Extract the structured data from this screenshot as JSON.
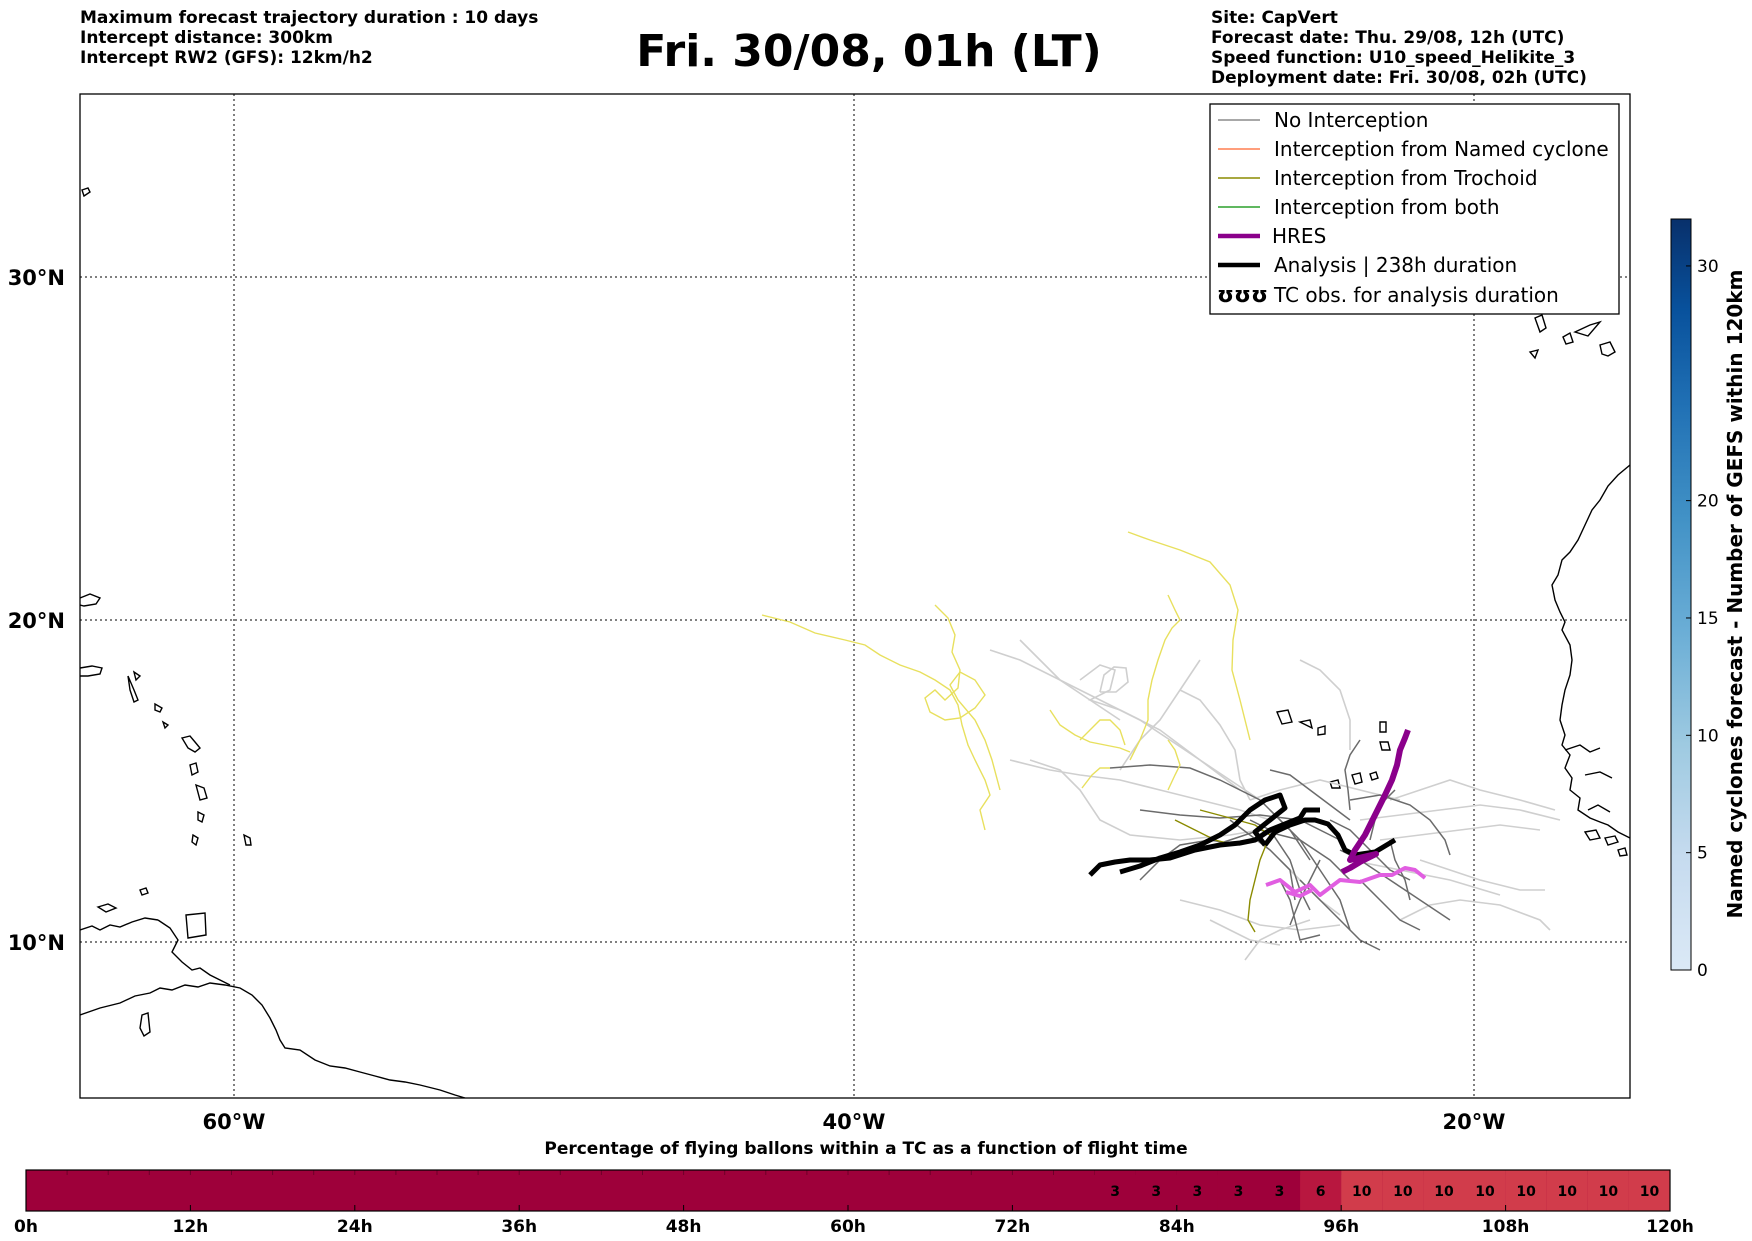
{
  "header": {
    "left": [
      "Maximum forecast trajectory duration : 10 days",
      "Intercept distance: 300km",
      "Intercept RW2 (GFS):  12km/h2"
    ],
    "title": "Fri. 30/08, 01h (LT)",
    "right": [
      "Site: CapVert",
      "Forecast date: Thu. 29/08, 12h (UTC)",
      "Speed function: U10_speed_Helikite_3",
      "Deployment date: Fri. 30/08, 02h (UTC)"
    ]
  },
  "map": {
    "lat_labels": [
      "30°N",
      "20°N",
      "10°N"
    ],
    "lon_labels": [
      "60°W",
      "40°W",
      "20°W"
    ],
    "lat_range": [
      5.5,
      34.5
    ],
    "lon_range": [
      -65,
      -15
    ],
    "grid": true
  },
  "legend": {
    "items": [
      {
        "label": "No Interception",
        "color": "#8c8c8c",
        "style": "thin"
      },
      {
        "label": "Interception from Named cyclone",
        "color": "#ff7f50",
        "style": "thin"
      },
      {
        "label": "Interception from Trochoid",
        "color": "#8b8b00",
        "style": "thin"
      },
      {
        "label": "Interception from both",
        "color": "#2ca02c",
        "style": "thin"
      },
      {
        "label": "HRES",
        "color": "#8b008b",
        "style": "thick"
      },
      {
        "label": "Analysis | 238h duration",
        "color": "#000000",
        "style": "thick"
      },
      {
        "label": "TC obs. for analysis duration",
        "color": "#000000",
        "style": "symbol",
        "symbol": "ʊʊʊ"
      }
    ]
  },
  "colorbar": {
    "title": "Named cyclones forecast - Number of GEFS within 120km",
    "ticks": [
      "0",
      "5",
      "10",
      "15",
      "20",
      "30"
    ],
    "tick_values": [
      0,
      5,
      10,
      15,
      20,
      30
    ],
    "range": [
      0,
      32
    ],
    "colors": [
      "#dbe9f6",
      "#c6dbef",
      "#9ecae1",
      "#6baed6",
      "#4292c6",
      "#2171b5",
      "#08519c",
      "#08306b"
    ]
  },
  "timeline": {
    "title": "Percentage of flying ballons within a TC as a function of flight time",
    "tick_labels": [
      "0h",
      "12h",
      "24h",
      "36h",
      "48h",
      "60h",
      "72h",
      "84h",
      "96h",
      "108h",
      "120h"
    ],
    "hours": [
      0,
      120
    ],
    "low_color": "#9e003a",
    "mid_color": "#b8173f",
    "high_color": "#d13c4b",
    "cells": [
      {
        "start_h": 78,
        "value": "3"
      },
      {
        "start_h": 81,
        "value": "3"
      },
      {
        "start_h": 84,
        "value": "3"
      },
      {
        "start_h": 87,
        "value": "3"
      },
      {
        "start_h": 90,
        "value": "3"
      },
      {
        "start_h": 93,
        "value": "6"
      },
      {
        "start_h": 96,
        "value": "10"
      },
      {
        "start_h": 99,
        "value": "10"
      },
      {
        "start_h": 102,
        "value": "10"
      },
      {
        "start_h": 105,
        "value": "10"
      },
      {
        "start_h": 108,
        "value": "10"
      },
      {
        "start_h": 111,
        "value": "10"
      },
      {
        "start_h": 114,
        "value": "10"
      },
      {
        "start_h": 117,
        "value": "10"
      }
    ]
  }
}
